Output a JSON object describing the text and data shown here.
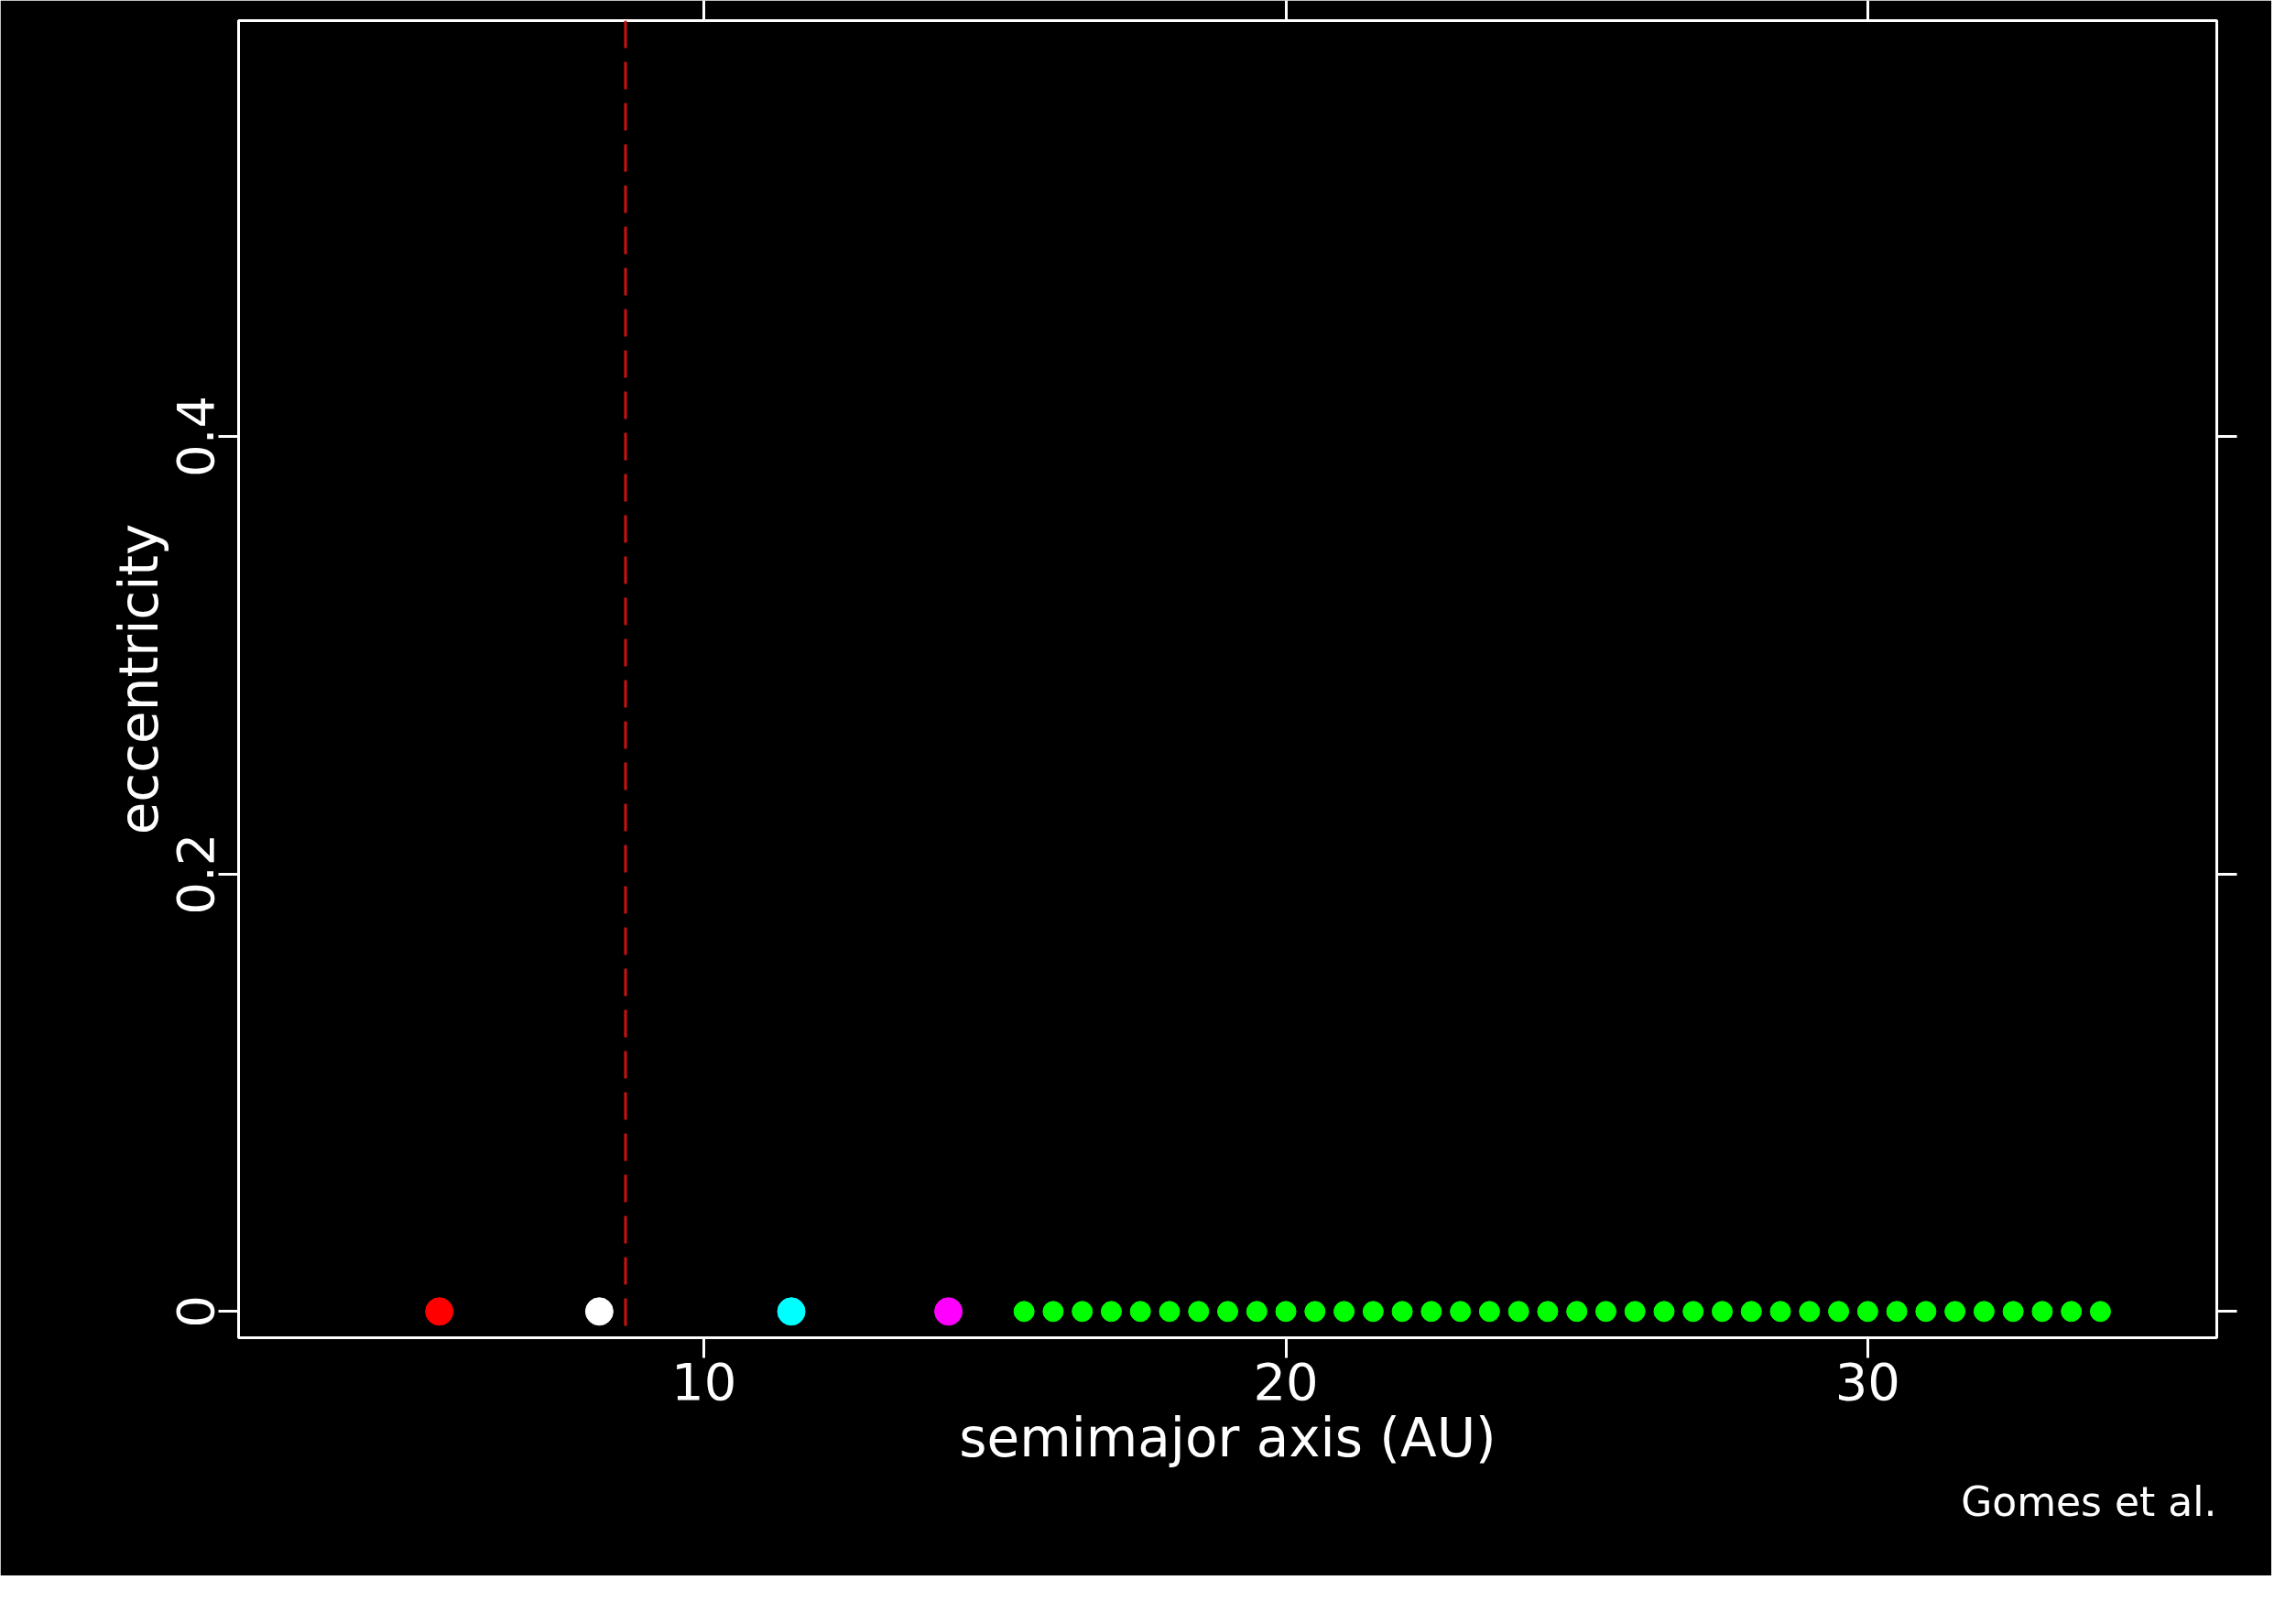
{
  "chart_data": {
    "type": "scatter",
    "xlabel": "semimajor axis (AU)",
    "ylabel": "eccentricity",
    "xlim": [
      2,
      36
    ],
    "ylim": [
      -0.012,
      0.59
    ],
    "xticks": [
      10,
      20,
      30
    ],
    "yticks": [
      0,
      0.2,
      0.4
    ],
    "grid": false,
    "marker": "circle",
    "series": [
      {
        "color": "#ff0000",
        "x": [
          5.45
        ],
        "values": [
          0
        ]
      },
      {
        "color": "#ffffff",
        "x": [
          8.2
        ],
        "values": [
          0
        ]
      },
      {
        "color": "#00ffff",
        "x": [
          11.5
        ],
        "values": [
          0
        ]
      },
      {
        "color": "#ff00ff",
        "x": [
          14.2
        ],
        "values": [
          0
        ]
      },
      {
        "color": "#00ff00",
        "x": [
          15.5,
          16,
          16.5,
          17,
          17.5,
          18,
          18.5,
          19,
          19.5,
          20,
          20.5,
          21,
          21.5,
          22,
          22.5,
          23,
          23.5,
          24,
          24.5,
          25,
          25.5,
          26,
          26.5,
          27,
          27.5,
          28,
          28.5,
          29,
          29.5,
          30,
          30.5,
          31,
          31.5,
          32,
          32.5,
          33,
          33.5,
          34
        ],
        "values": [
          0,
          0,
          0,
          0,
          0,
          0,
          0,
          0,
          0,
          0,
          0,
          0,
          0,
          0,
          0,
          0,
          0,
          0,
          0,
          0,
          0,
          0,
          0,
          0,
          0,
          0,
          0,
          0,
          0,
          0,
          0,
          0,
          0,
          0,
          0,
          0,
          0,
          0
        ]
      }
    ],
    "ref_lines": [
      {
        "axis": "x",
        "value": 8.65,
        "label": null,
        "color": "#cc1111",
        "line_style": "dashed"
      }
    ],
    "annotations": [
      "Gomes et al."
    ]
  }
}
